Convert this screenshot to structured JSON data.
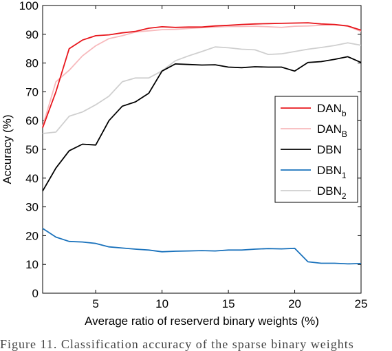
{
  "chart_data": {
    "type": "line",
    "xlabel": "Average ratio of reserverd binary weights (%)",
    "ylabel": "Accuracy (%)",
    "xlim": [
      1,
      25
    ],
    "ylim": [
      0,
      100
    ],
    "xticks": [
      5,
      10,
      15,
      20,
      25
    ],
    "yticks": [
      0,
      10,
      20,
      30,
      40,
      50,
      60,
      70,
      80,
      90,
      100
    ],
    "grid": false,
    "legend_position": "right-middle",
    "x": [
      1,
      2,
      3,
      4,
      5,
      6,
      7,
      8,
      9,
      10,
      11,
      12,
      13,
      14,
      15,
      16,
      17,
      18,
      19,
      20,
      21,
      22,
      23,
      24,
      25
    ],
    "series": [
      {
        "name": "DAN",
        "sub": "b",
        "color": "#e8171d",
        "values": [
          57.5,
          70,
          85,
          88,
          89.5,
          89.8,
          90.5,
          91,
          92.1,
          92.6,
          92.4,
          92.5,
          92.5,
          92.9,
          93.1,
          93.4,
          93.6,
          93.7,
          93.8,
          93.9,
          94,
          93.6,
          93.4,
          92.9,
          91.4
        ]
      },
      {
        "name": "DAN",
        "sub": "B",
        "color": "#f7b9bc",
        "values": [
          58,
          73.5,
          77.5,
          82.5,
          86,
          88.5,
          89.5,
          90.8,
          91.2,
          91.6,
          91.7,
          92,
          92.3,
          92.5,
          92.7,
          92.7,
          92.8,
          92.6,
          92.4,
          92.8,
          92.9,
          93.1,
          93.3,
          92.8,
          91
        ]
      },
      {
        "name": "DBN",
        "sub": "",
        "color": "#000000",
        "values": [
          35.5,
          43.5,
          49.5,
          51.8,
          51.5,
          60,
          65,
          66.5,
          69.5,
          77.2,
          79.7,
          79.5,
          79.3,
          79.4,
          78.6,
          78.4,
          78.7,
          78.6,
          78.6,
          77.2,
          80.2,
          80.5,
          81.3,
          82.2,
          80.2
        ]
      },
      {
        "name": "DBN",
        "sub": "1",
        "color": "#1a72bc",
        "values": [
          22.5,
          19.5,
          18,
          17.8,
          17.3,
          16.1,
          15.7,
          15.3,
          15,
          14.4,
          14.6,
          14.7,
          14.8,
          14.7,
          15,
          15,
          15.3,
          15.5,
          15.4,
          15.6,
          10.9,
          10.4,
          10.4,
          10.2,
          10.3
        ]
      },
      {
        "name": "DBN",
        "sub": "2",
        "color": "#cfcfcf",
        "values": [
          55.5,
          56,
          61.5,
          63,
          65.5,
          68.5,
          73.5,
          74.8,
          74.8,
          77.3,
          80.8,
          82.5,
          84,
          85.6,
          85.3,
          84.8,
          84.6,
          83,
          83.2,
          84,
          84.8,
          85.4,
          86.1,
          87,
          86.2
        ]
      }
    ]
  },
  "caption": "Figure 11. Classification accuracy of the sparse binary weights"
}
